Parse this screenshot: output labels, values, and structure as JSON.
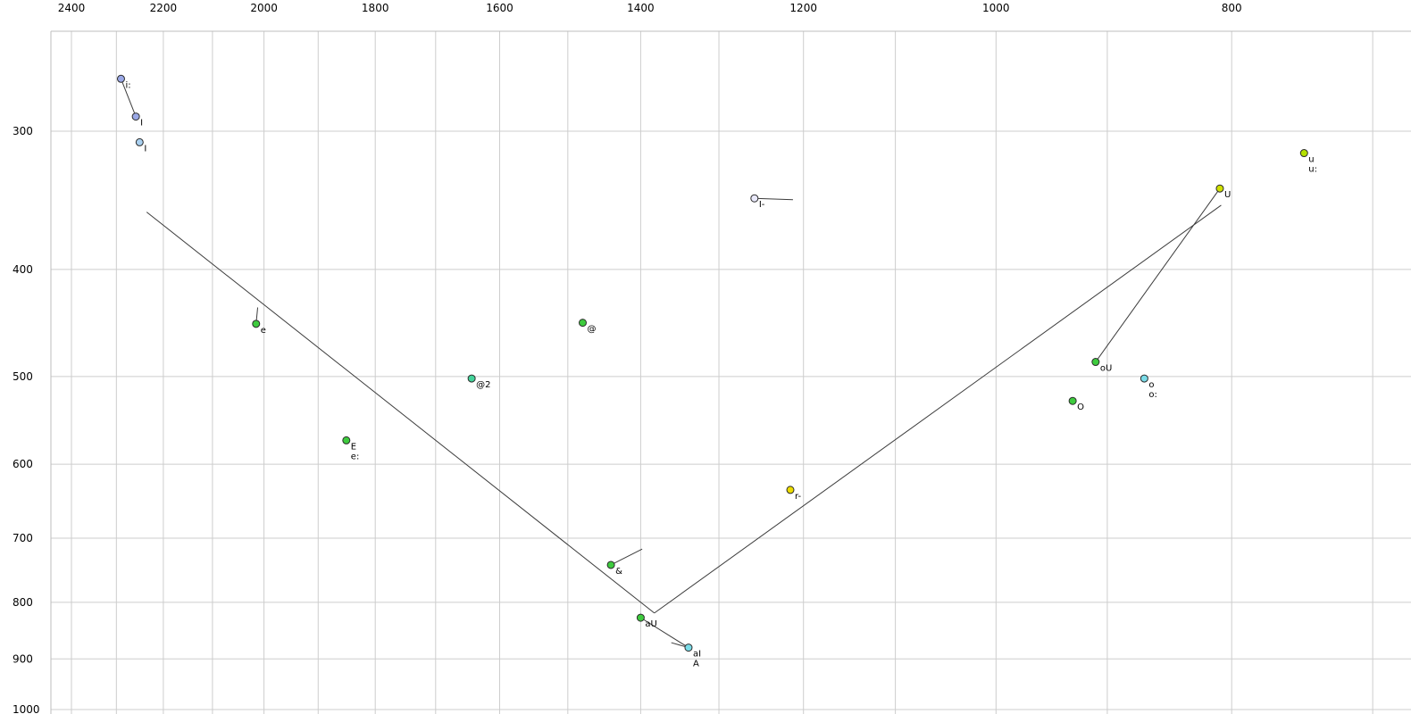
{
  "chart_data": {
    "type": "scatter",
    "title": "",
    "description": "Vowel formant scatter plot: F2 (Hz) on reversed log x-axis (top labels), F1 (Hz) on log y-axis (left labels), points labeled with X-SAMPA vowel symbols, with connector lines forming a vowel-space triangle and diphthong trajectories",
    "x_axis": {
      "scale": "log",
      "reversed": true,
      "unit_values_labeled": [
        2400,
        2200,
        2000,
        1800,
        1600,
        1400,
        1200,
        1000,
        800
      ],
      "gridline_max": 2400,
      "gridline_min": 700,
      "gridline_step": 100
    },
    "y_axis": {
      "scale": "log",
      "reversed": false,
      "unit_values_labeled": [
        300,
        400,
        500,
        600,
        700,
        800,
        900,
        1000
      ],
      "gridline_max": 1000,
      "gridline_min": 300,
      "gridline_step": 100
    },
    "points": [
      {
        "labels": [
          "i:"
        ],
        "f2": 2290,
        "f1": 269,
        "color": "#9aa8e6"
      },
      {
        "labels": [
          "I"
        ],
        "f2": 2258,
        "f1": 291,
        "color": "#9aa8e6"
      },
      {
        "labels": [
          "I"
        ],
        "f2": 2250,
        "f1": 307,
        "color": "#a9d0f0"
      },
      {
        "labels": [
          "u",
          "u:"
        ],
        "f2": 747,
        "f1": 314,
        "color": "#b4e000"
      },
      {
        "labels": [
          "U"
        ],
        "f2": 809,
        "f1": 338,
        "color": "#cfe000"
      },
      {
        "labels": [
          "I-"
        ],
        "f2": 1257,
        "f1": 345,
        "color": "#e9e9fb"
      },
      {
        "labels": [
          "e"
        ],
        "f2": 2015,
        "f1": 448,
        "color": "#3ecb3e"
      },
      {
        "labels": [
          "@"
        ],
        "f2": 1479,
        "f1": 447,
        "color": "#3ecb3e"
      },
      {
        "labels": [
          "@2"
        ],
        "f2": 1643,
        "f1": 502,
        "color": "#43d39a"
      },
      {
        "labels": [
          "oU"
        ],
        "f2": 910,
        "f1": 485,
        "color": "#3ecb3e"
      },
      {
        "labels": [
          "o",
          "o:"
        ],
        "f2": 869,
        "f1": 502,
        "color": "#7adce8"
      },
      {
        "labels": [
          "O"
        ],
        "f2": 930,
        "f1": 526,
        "color": "#3ecb3e"
      },
      {
        "labels": [
          "E",
          "e:"
        ],
        "f2": 1850,
        "f1": 571,
        "color": "#3ecb3e"
      },
      {
        "labels": [
          "r-"
        ],
        "f2": 1215,
        "f1": 633,
        "color": "#ecdc00"
      },
      {
        "labels": [
          "&"
        ],
        "f2": 1440,
        "f1": 740,
        "color": "#3ecb3e"
      },
      {
        "labels": [
          "aU"
        ],
        "f2": 1400,
        "f1": 826,
        "color": "#3ecb3e"
      },
      {
        "labels": [
          "aI",
          "A"
        ],
        "f2": 1338,
        "f1": 879,
        "color": "#7adce8"
      }
    ],
    "segments": [
      {
        "from": [
          2290,
          269
        ],
        "to": [
          2258,
          291
        ]
      },
      {
        "from": [
          2235,
          355
        ],
        "to": [
          1382,
          818
        ]
      },
      {
        "from": [
          1382,
          818
        ],
        "to": [
          808,
          350
        ]
      },
      {
        "from": [
          809,
          338
        ],
        "to": [
          910,
          485
        ]
      },
      {
        "from": [
          1400,
          826
        ],
        "to": [
          1338,
          879
        ]
      },
      {
        "from": [
          1257,
          345
        ],
        "to": [
          1212,
          346
        ]
      },
      {
        "from": [
          2015,
          448
        ],
        "to": [
          2012,
          433
        ]
      },
      {
        "from": [
          1440,
          740
        ],
        "to": [
          1398,
          716
        ]
      },
      {
        "from": [
          1360,
          870
        ],
        "to": [
          1338,
          879
        ]
      }
    ],
    "colors": {
      "gridline": "#cdcdcd",
      "axis_border": "#bdbdbd",
      "connector_line": "#3c3c3c",
      "point_outline": "#2b2b2b",
      "background": "#ffffff"
    }
  }
}
